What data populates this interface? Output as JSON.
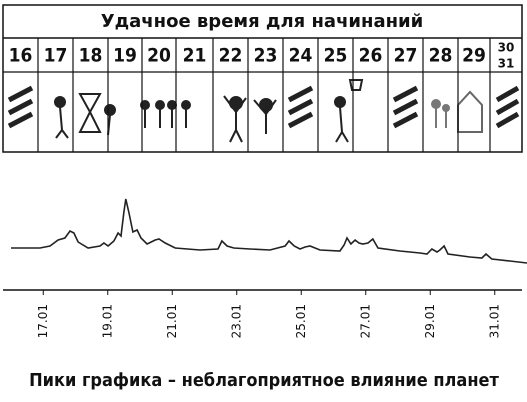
{
  "table": {
    "title": "Удачное время для начинаний",
    "days": [
      "16",
      "17",
      "18",
      "19",
      "20",
      "21",
      "22",
      "23",
      "24",
      "25",
      "26",
      "27",
      "28",
      "29"
    ],
    "last_day": [
      "30",
      "31"
    ]
  },
  "chart_data": {
    "type": "line",
    "title": "Пики графика – неблагоприятное влияние планет",
    "color": "#222222",
    "x": [
      16.0,
      16.9,
      17.21,
      17.46,
      17.67,
      17.83,
      17.95,
      18.08,
      18.39,
      18.76,
      18.88,
      19.01,
      19.19,
      19.32,
      19.41,
      19.5,
      19.56,
      19.66,
      19.78,
      19.91,
      20.03,
      20.22,
      20.47,
      20.59,
      20.78,
      21.09,
      21.86,
      22.42,
      22.54,
      22.7,
      22.91,
      23.41,
      24.03,
      24.5,
      24.62,
      24.78,
      24.96,
      25.12,
      25.27,
      25.58,
      26.2,
      26.33,
      26.42,
      26.54,
      26.67,
      26.79,
      26.91,
      27.07,
      27.22,
      27.38,
      28.06,
      28.68,
      28.9,
      29.05,
      29.21,
      29.3,
      29.43,
      29.55,
      30.23,
      30.6,
      30.73,
      30.91,
      31.47,
      32.0
    ],
    "values": [
      42,
      42,
      44,
      50,
      52,
      59,
      57,
      48,
      42,
      44,
      47,
      44,
      49,
      57,
      54,
      78,
      91,
      77,
      58,
      60,
      52,
      46,
      50,
      51,
      47,
      42,
      40,
      41,
      49,
      44,
      42,
      41,
      40,
      44,
      49,
      44,
      41,
      43,
      44,
      40,
      39,
      45,
      52,
      46,
      50,
      47,
      46,
      47,
      51,
      42,
      39,
      37,
      36,
      41,
      38,
      40,
      44,
      36,
      33,
      32,
      36,
      31,
      29,
      27
    ],
    "xlim": [
      16,
      32
    ],
    "ylim": [
      0,
      100
    ],
    "xticks": [
      {
        "value": 17,
        "label": "17.01"
      },
      {
        "value": 19,
        "label": "19.01"
      },
      {
        "value": 21,
        "label": "21.01"
      },
      {
        "value": 23,
        "label": "23.01"
      },
      {
        "value": 25,
        "label": "25.01"
      },
      {
        "value": 27,
        "label": "27.01"
      },
      {
        "value": 29,
        "label": "29.01"
      },
      {
        "value": 31,
        "label": "31.01"
      }
    ]
  }
}
